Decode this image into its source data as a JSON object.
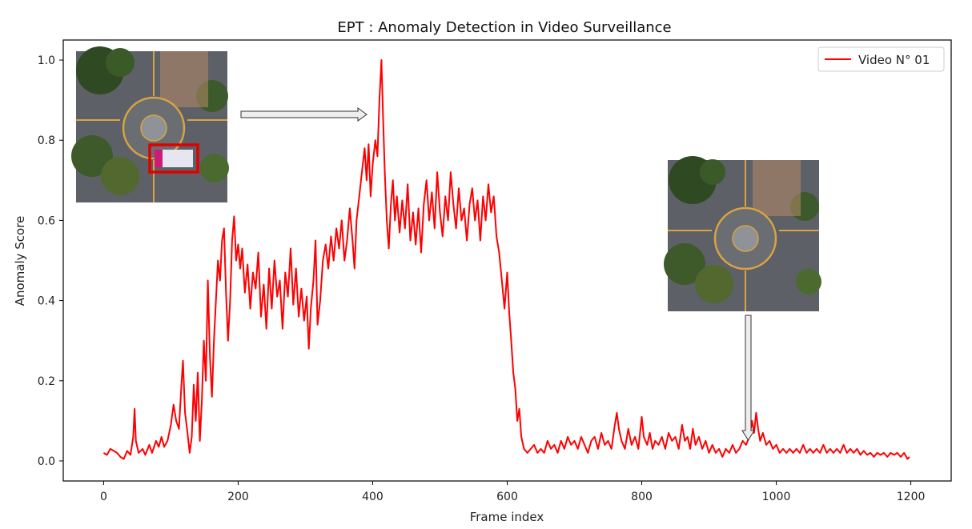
{
  "chart_data": {
    "type": "line",
    "title": "EPT : Anomaly Detection in Video Surveillance",
    "xlabel": "Frame index",
    "ylabel": "Anomaly Score",
    "xlim": [
      -60,
      1260
    ],
    "ylim": [
      -0.05,
      1.05
    ],
    "xticks": [
      0,
      200,
      400,
      600,
      800,
      1000,
      1200
    ],
    "yticks": [
      0.0,
      0.2,
      0.4,
      0.6,
      0.8,
      1.0
    ],
    "grid": false,
    "legend_position": "top-right",
    "series": [
      {
        "name": "Video N° 01",
        "color": "#ff0000",
        "points": [
          [
            0,
            0.02
          ],
          [
            5,
            0.015
          ],
          [
            10,
            0.03
          ],
          [
            15,
            0.025
          ],
          [
            20,
            0.02
          ],
          [
            25,
            0.01
          ],
          [
            30,
            0.005
          ],
          [
            35,
            0.025
          ],
          [
            40,
            0.015
          ],
          [
            44,
            0.06
          ],
          [
            46,
            0.13
          ],
          [
            48,
            0.05
          ],
          [
            52,
            0.02
          ],
          [
            58,
            0.03
          ],
          [
            62,
            0.015
          ],
          [
            68,
            0.04
          ],
          [
            72,
            0.02
          ],
          [
            78,
            0.05
          ],
          [
            82,
            0.035
          ],
          [
            86,
            0.06
          ],
          [
            90,
            0.035
          ],
          [
            95,
            0.05
          ],
          [
            100,
            0.09
          ],
          [
            104,
            0.14
          ],
          [
            108,
            0.1
          ],
          [
            112,
            0.08
          ],
          [
            116,
            0.2
          ],
          [
            118,
            0.25
          ],
          [
            121,
            0.12
          ],
          [
            124,
            0.08
          ],
          [
            128,
            0.02
          ],
          [
            131,
            0.06
          ],
          [
            134,
            0.19
          ],
          [
            137,
            0.1
          ],
          [
            140,
            0.22
          ],
          [
            143,
            0.05
          ],
          [
            146,
            0.15
          ],
          [
            149,
            0.3
          ],
          [
            152,
            0.2
          ],
          [
            155,
            0.45
          ],
          [
            158,
            0.26
          ],
          [
            161,
            0.16
          ],
          [
            164,
            0.3
          ],
          [
            167,
            0.4
          ],
          [
            170,
            0.5
          ],
          [
            173,
            0.45
          ],
          [
            176,
            0.55
          ],
          [
            179,
            0.58
          ],
          [
            182,
            0.42
          ],
          [
            185,
            0.3
          ],
          [
            188,
            0.4
          ],
          [
            191,
            0.55
          ],
          [
            194,
            0.61
          ],
          [
            197,
            0.5
          ],
          [
            200,
            0.54
          ],
          [
            203,
            0.48
          ],
          [
            206,
            0.53
          ],
          [
            210,
            0.42
          ],
          [
            214,
            0.49
          ],
          [
            218,
            0.38
          ],
          [
            222,
            0.47
          ],
          [
            226,
            0.43
          ],
          [
            230,
            0.52
          ],
          [
            234,
            0.36
          ],
          [
            238,
            0.44
          ],
          [
            242,
            0.33
          ],
          [
            246,
            0.48
          ],
          [
            250,
            0.38
          ],
          [
            254,
            0.5
          ],
          [
            258,
            0.41
          ],
          [
            262,
            0.45
          ],
          [
            266,
            0.33
          ],
          [
            270,
            0.47
          ],
          [
            274,
            0.41
          ],
          [
            278,
            0.53
          ],
          [
            282,
            0.39
          ],
          [
            286,
            0.48
          ],
          [
            290,
            0.36
          ],
          [
            294,
            0.43
          ],
          [
            298,
            0.35
          ],
          [
            302,
            0.41
          ],
          [
            305,
            0.28
          ],
          [
            308,
            0.38
          ],
          [
            312,
            0.45
          ],
          [
            315,
            0.55
          ],
          [
            318,
            0.34
          ],
          [
            322,
            0.4
          ],
          [
            326,
            0.5
          ],
          [
            330,
            0.54
          ],
          [
            334,
            0.48
          ],
          [
            338,
            0.56
          ],
          [
            342,
            0.5
          ],
          [
            346,
            0.58
          ],
          [
            350,
            0.53
          ],
          [
            354,
            0.6
          ],
          [
            358,
            0.5
          ],
          [
            362,
            0.55
          ],
          [
            366,
            0.63
          ],
          [
            370,
            0.55
          ],
          [
            373,
            0.48
          ],
          [
            376,
            0.6
          ],
          [
            380,
            0.66
          ],
          [
            384,
            0.72
          ],
          [
            388,
            0.78
          ],
          [
            391,
            0.7
          ],
          [
            394,
            0.79
          ],
          [
            397,
            0.66
          ],
          [
            400,
            0.74
          ],
          [
            404,
            0.8
          ],
          [
            407,
            0.76
          ],
          [
            410,
            0.9
          ],
          [
            413,
            1.0
          ],
          [
            415,
            0.88
          ],
          [
            418,
            0.72
          ],
          [
            421,
            0.6
          ],
          [
            424,
            0.53
          ],
          [
            427,
            0.64
          ],
          [
            430,
            0.7
          ],
          [
            433,
            0.6
          ],
          [
            436,
            0.66
          ],
          [
            440,
            0.57
          ],
          [
            444,
            0.65
          ],
          [
            448,
            0.58
          ],
          [
            452,
            0.69
          ],
          [
            456,
            0.55
          ],
          [
            460,
            0.62
          ],
          [
            464,
            0.54
          ],
          [
            468,
            0.63
          ],
          [
            472,
            0.52
          ],
          [
            476,
            0.64
          ],
          [
            480,
            0.7
          ],
          [
            484,
            0.6
          ],
          [
            488,
            0.67
          ],
          [
            492,
            0.58
          ],
          [
            496,
            0.72
          ],
          [
            500,
            0.62
          ],
          [
            504,
            0.56
          ],
          [
            508,
            0.66
          ],
          [
            512,
            0.6
          ],
          [
            516,
            0.72
          ],
          [
            520,
            0.64
          ],
          [
            524,
            0.58
          ],
          [
            528,
            0.68
          ],
          [
            532,
            0.6
          ],
          [
            536,
            0.63
          ],
          [
            540,
            0.55
          ],
          [
            544,
            0.64
          ],
          [
            548,
            0.68
          ],
          [
            552,
            0.6
          ],
          [
            556,
            0.65
          ],
          [
            560,
            0.55
          ],
          [
            564,
            0.66
          ],
          [
            568,
            0.6
          ],
          [
            572,
            0.69
          ],
          [
            576,
            0.62
          ],
          [
            580,
            0.66
          ],
          [
            584,
            0.56
          ],
          [
            588,
            0.52
          ],
          [
            592,
            0.45
          ],
          [
            596,
            0.38
          ],
          [
            600,
            0.47
          ],
          [
            603,
            0.37
          ],
          [
            606,
            0.3
          ],
          [
            609,
            0.22
          ],
          [
            612,
            0.18
          ],
          [
            615,
            0.1
          ],
          [
            618,
            0.13
          ],
          [
            621,
            0.06
          ],
          [
            625,
            0.03
          ],
          [
            630,
            0.02
          ],
          [
            635,
            0.03
          ],
          [
            640,
            0.04
          ],
          [
            645,
            0.02
          ],
          [
            650,
            0.03
          ],
          [
            655,
            0.02
          ],
          [
            660,
            0.05
          ],
          [
            665,
            0.03
          ],
          [
            670,
            0.04
          ],
          [
            675,
            0.02
          ],
          [
            680,
            0.05
          ],
          [
            685,
            0.03
          ],
          [
            690,
            0.06
          ],
          [
            695,
            0.04
          ],
          [
            700,
            0.05
          ],
          [
            705,
            0.03
          ],
          [
            710,
            0.06
          ],
          [
            715,
            0.04
          ],
          [
            720,
            0.02
          ],
          [
            725,
            0.05
          ],
          [
            730,
            0.06
          ],
          [
            735,
            0.03
          ],
          [
            740,
            0.07
          ],
          [
            745,
            0.04
          ],
          [
            750,
            0.05
          ],
          [
            755,
            0.03
          ],
          [
            760,
            0.09
          ],
          [
            763,
            0.12
          ],
          [
            766,
            0.08
          ],
          [
            770,
            0.05
          ],
          [
            775,
            0.03
          ],
          [
            780,
            0.08
          ],
          [
            785,
            0.04
          ],
          [
            790,
            0.06
          ],
          [
            795,
            0.03
          ],
          [
            800,
            0.11
          ],
          [
            803,
            0.06
          ],
          [
            808,
            0.04
          ],
          [
            812,
            0.07
          ],
          [
            816,
            0.03
          ],
          [
            820,
            0.05
          ],
          [
            825,
            0.04
          ],
          [
            830,
            0.06
          ],
          [
            835,
            0.03
          ],
          [
            840,
            0.07
          ],
          [
            845,
            0.05
          ],
          [
            850,
            0.06
          ],
          [
            855,
            0.03
          ],
          [
            860,
            0.09
          ],
          [
            864,
            0.05
          ],
          [
            868,
            0.06
          ],
          [
            872,
            0.03
          ],
          [
            876,
            0.08
          ],
          [
            880,
            0.04
          ],
          [
            885,
            0.06
          ],
          [
            890,
            0.03
          ],
          [
            895,
            0.05
          ],
          [
            900,
            0.02
          ],
          [
            905,
            0.04
          ],
          [
            910,
            0.02
          ],
          [
            915,
            0.03
          ],
          [
            920,
            0.01
          ],
          [
            925,
            0.03
          ],
          [
            930,
            0.02
          ],
          [
            935,
            0.04
          ],
          [
            940,
            0.02
          ],
          [
            945,
            0.03
          ],
          [
            950,
            0.05
          ],
          [
            955,
            0.04
          ],
          [
            960,
            0.06
          ],
          [
            964,
            0.1
          ],
          [
            967,
            0.07
          ],
          [
            970,
            0.12
          ],
          [
            973,
            0.08
          ],
          [
            976,
            0.05
          ],
          [
            980,
            0.07
          ],
          [
            985,
            0.04
          ],
          [
            990,
            0.05
          ],
          [
            995,
            0.03
          ],
          [
            1000,
            0.04
          ],
          [
            1005,
            0.02
          ],
          [
            1010,
            0.03
          ],
          [
            1015,
            0.02
          ],
          [
            1020,
            0.03
          ],
          [
            1025,
            0.02
          ],
          [
            1030,
            0.03
          ],
          [
            1035,
            0.02
          ],
          [
            1040,
            0.04
          ],
          [
            1045,
            0.02
          ],
          [
            1050,
            0.03
          ],
          [
            1055,
            0.02
          ],
          [
            1060,
            0.03
          ],
          [
            1065,
            0.02
          ],
          [
            1070,
            0.04
          ],
          [
            1075,
            0.02
          ],
          [
            1080,
            0.03
          ],
          [
            1085,
            0.02
          ],
          [
            1090,
            0.03
          ],
          [
            1095,
            0.02
          ],
          [
            1100,
            0.04
          ],
          [
            1105,
            0.02
          ],
          [
            1110,
            0.03
          ],
          [
            1115,
            0.02
          ],
          [
            1120,
            0.03
          ],
          [
            1125,
            0.015
          ],
          [
            1130,
            0.025
          ],
          [
            1135,
            0.015
          ],
          [
            1140,
            0.02
          ],
          [
            1145,
            0.01
          ],
          [
            1150,
            0.02
          ],
          [
            1155,
            0.015
          ],
          [
            1160,
            0.02
          ],
          [
            1165,
            0.01
          ],
          [
            1170,
            0.02
          ],
          [
            1175,
            0.015
          ],
          [
            1180,
            0.02
          ],
          [
            1185,
            0.01
          ],
          [
            1190,
            0.02
          ],
          [
            1195,
            0.005
          ],
          [
            1198,
            0.01
          ]
        ]
      }
    ],
    "annotations": [
      {
        "type": "image-inset",
        "depicts": "aerial roundabout view with highlighted anomaly region",
        "highlight_color": "#e00000"
      },
      {
        "type": "image-inset",
        "depicts": "aerial roundabout view without anomaly"
      },
      {
        "type": "arrow",
        "direction": "right",
        "points_to_frame": 400
      },
      {
        "type": "arrow",
        "direction": "down",
        "points_to_frame": 960
      }
    ]
  }
}
